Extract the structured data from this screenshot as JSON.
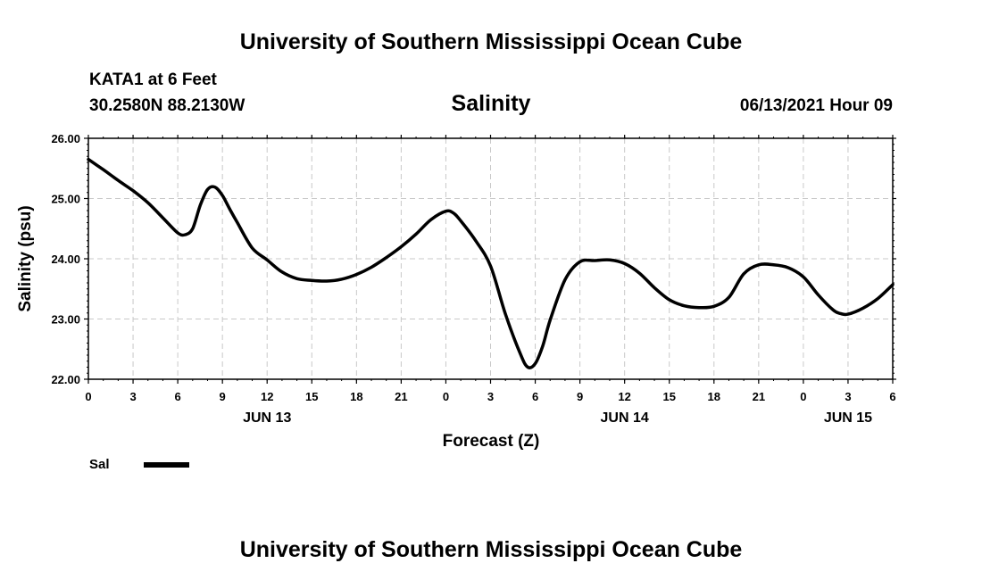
{
  "header": {
    "title": "University of Southern Mississippi Ocean Cube",
    "station": "KATA1 at 6 Feet",
    "coords": "30.2580N  88.2130W",
    "datetime": "06/13/2021 Hour 09"
  },
  "footer": {
    "title": "University of Southern Mississippi Ocean Cube"
  },
  "chart_data": {
    "type": "line",
    "title": "Salinity",
    "xlabel": "Forecast (Z)",
    "ylabel": "Salinity (psu)",
    "ylim": [
      22.0,
      26.0
    ],
    "yticks": [
      "22.00",
      "23.00",
      "24.00",
      "25.00",
      "26.00"
    ],
    "xlim_hours": [
      0,
      54
    ],
    "xtick_hours": [
      0,
      3,
      6,
      9,
      12,
      15,
      18,
      21,
      24,
      27,
      30,
      33,
      36,
      39,
      42,
      45,
      48,
      51,
      54
    ],
    "xtick_labels": [
      "0",
      "3",
      "6",
      "9",
      "12",
      "15",
      "18",
      "21",
      "0",
      "3",
      "6",
      "9",
      "12",
      "15",
      "18",
      "21",
      "0",
      "3",
      "6"
    ],
    "day_labels": [
      {
        "label": "JUN 13",
        "hour": 12
      },
      {
        "label": "JUN 14",
        "hour": 36
      },
      {
        "label": "JUN 15",
        "hour": 51
      }
    ],
    "grid": true,
    "legend_position": "bottom-left",
    "series": [
      {
        "name": "Sal",
        "color": "#000000",
        "x": [
          0,
          1,
          2,
          3,
          4,
          5,
          6,
          6.5,
          7,
          7.5,
          8,
          8.5,
          9,
          9.5,
          10,
          11,
          12,
          13,
          14,
          15,
          16,
          17,
          18,
          19,
          20,
          21,
          22,
          23,
          24,
          24.5,
          25,
          26,
          27,
          28,
          29,
          29.5,
          30,
          30.5,
          31,
          32,
          33,
          34,
          35,
          36,
          37,
          38,
          39,
          40,
          41,
          42,
          43,
          44,
          45,
          46,
          47,
          48,
          49,
          50,
          50.5,
          51,
          52,
          53,
          54
        ],
        "y": [
          25.65,
          25.48,
          25.3,
          25.13,
          24.93,
          24.68,
          24.43,
          24.4,
          24.5,
          24.88,
          25.15,
          25.19,
          25.05,
          24.82,
          24.6,
          24.18,
          23.98,
          23.78,
          23.67,
          23.64,
          23.63,
          23.66,
          23.74,
          23.86,
          24.02,
          24.2,
          24.41,
          24.65,
          24.79,
          24.76,
          24.63,
          24.3,
          23.88,
          23.08,
          22.42,
          22.2,
          22.26,
          22.55,
          22.98,
          23.65,
          23.95,
          23.97,
          23.98,
          23.92,
          23.76,
          23.52,
          23.32,
          23.22,
          23.19,
          23.21,
          23.36,
          23.75,
          23.9,
          23.9,
          23.85,
          23.7,
          23.4,
          23.15,
          23.09,
          23.08,
          23.18,
          23.34,
          23.57
        ]
      }
    ]
  }
}
